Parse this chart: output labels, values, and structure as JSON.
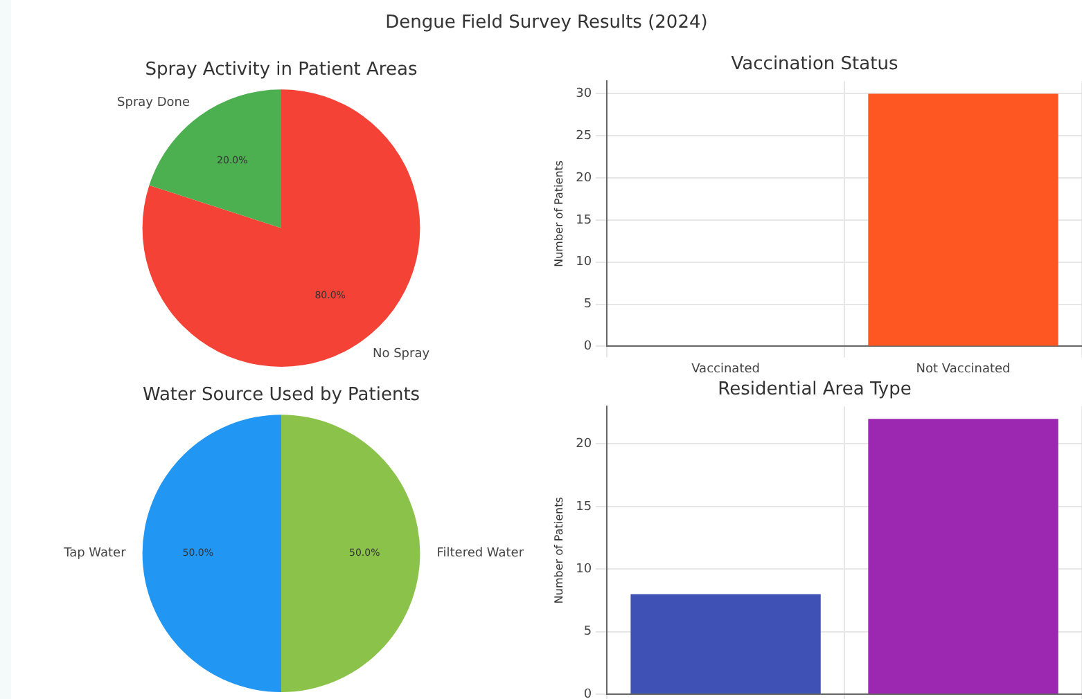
{
  "chart_data": [
    {
      "type": "other",
      "title": "Dengue Field Survey Results (2024)"
    },
    {
      "type": "pie",
      "title": "Spray Activity in Patient Areas",
      "categories": [
        "No Spray",
        "Spray Done"
      ],
      "values": [
        80,
        20
      ],
      "colors": [
        "#f44336",
        "#4caf50"
      ],
      "value_labels": [
        "80.0%",
        "20.0%"
      ]
    },
    {
      "type": "bar",
      "title": "Vaccination Status",
      "ylabel": "Number of Patients",
      "categories": [
        "Vaccinated",
        "Not Vaccinated"
      ],
      "values": [
        0,
        30
      ],
      "colors": [
        "#ff5722",
        "#ff5722"
      ],
      "ylim": [
        0,
        31.5
      ],
      "yticks": [
        0,
        5,
        10,
        15,
        20,
        25,
        30
      ],
      "grid": true
    },
    {
      "type": "pie",
      "title": "Water Source Used by Patients",
      "categories": [
        "Filtered Water",
        "Tap Water"
      ],
      "values": [
        50,
        50
      ],
      "colors": [
        "#8bc34a",
        "#2196f3"
      ],
      "value_labels": [
        "50.0%",
        "50.0%"
      ]
    },
    {
      "type": "bar",
      "title": "Residential Area Type",
      "ylabel": "Number of Patients",
      "categories": [
        null,
        null
      ],
      "values": [
        8,
        22
      ],
      "colors": [
        "#3f51b5",
        "#9c27b0"
      ],
      "ylim": [
        0,
        23
      ],
      "yticks": [
        0,
        5,
        10,
        15,
        20
      ],
      "grid": true,
      "tick_labels": "y"
    }
  ]
}
